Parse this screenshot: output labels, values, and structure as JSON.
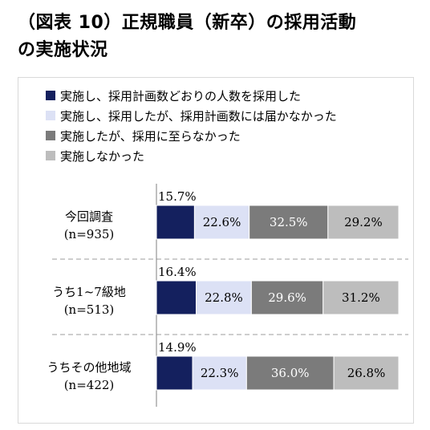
{
  "title_line1": "（図表 10）正規職員（新卒）の採用活動",
  "title_line2": "の実施状況",
  "colors": {
    "series": [
      "#14205e",
      "#dce1f5",
      "#7b7b7b",
      "#bdbdbd"
    ],
    "axis": "#7f7f7f",
    "divider": "#9e9e9e"
  },
  "chart_data": {
    "type": "bar",
    "orientation": "horizontal",
    "stacked": true,
    "categories": [
      {
        "label": "今回調査",
        "n": "(n=935)"
      },
      {
        "label": "うち1~7級地",
        "n": "(n=513)"
      },
      {
        "label": "うちその他地域",
        "n": "(n=422)"
      }
    ],
    "series": [
      {
        "name": "実施し、採用計画数どおりの人数を採用した",
        "values": [
          15.7,
          16.4,
          14.9
        ],
        "labels": [
          "15.7%",
          "16.4%",
          "14.9%"
        ]
      },
      {
        "name": "実施し、採用したが、採用計画数には届かなかった",
        "values": [
          22.6,
          22.8,
          22.3
        ],
        "labels": [
          "22.6%",
          "22.8%",
          "22.3%"
        ]
      },
      {
        "name": "実施したが、採用に至らなかった",
        "values": [
          32.5,
          29.6,
          36.0
        ],
        "labels": [
          "32.5%",
          "29.6%",
          "36.0%"
        ]
      },
      {
        "name": "実施しなかった",
        "values": [
          29.2,
          31.2,
          26.8
        ],
        "labels": [
          "29.2%",
          "31.2%",
          "26.8%"
        ]
      }
    ],
    "xlim": [
      0,
      100
    ],
    "legend_position": "top-left"
  }
}
